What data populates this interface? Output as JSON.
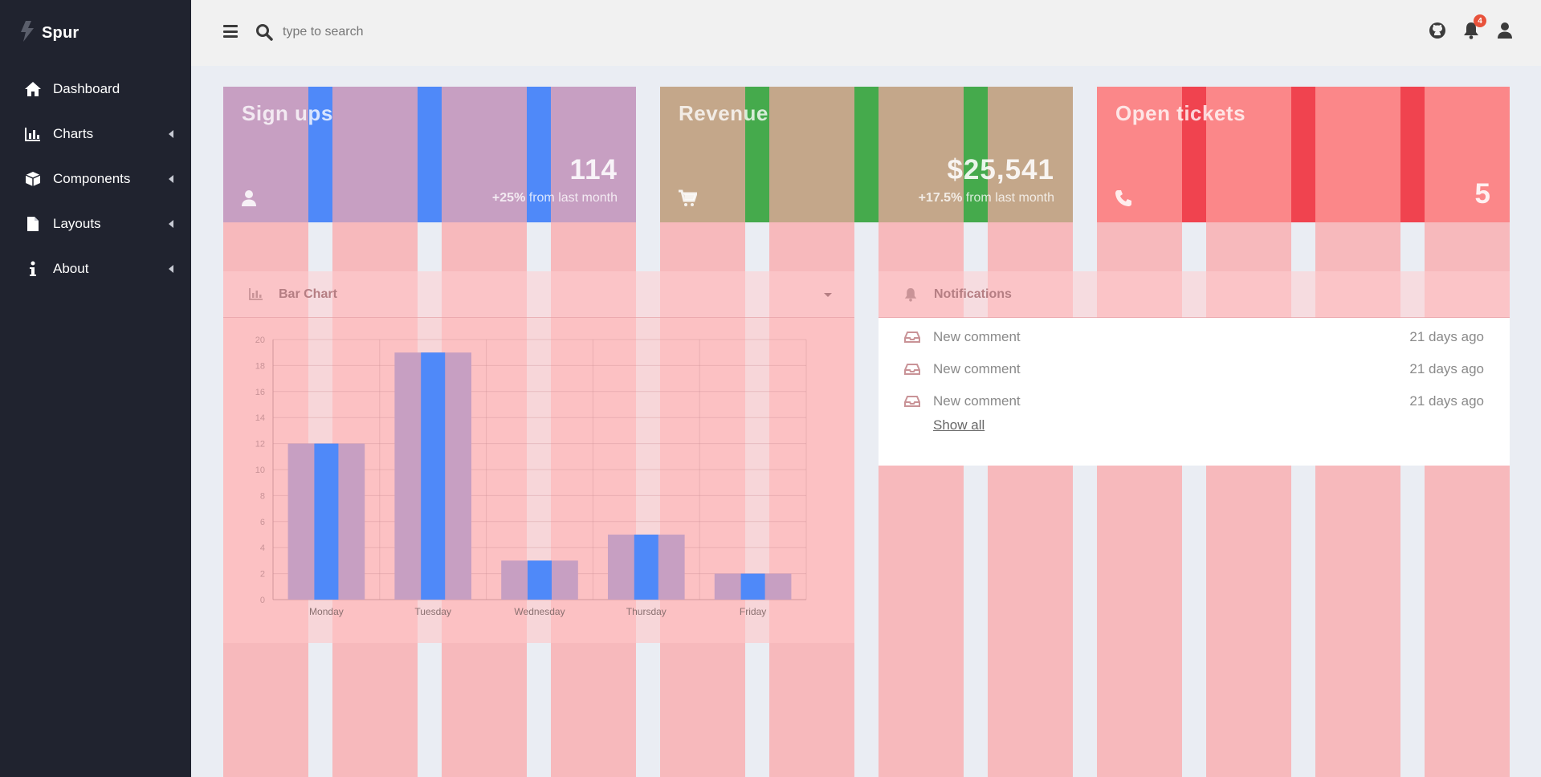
{
  "sidebar": {
    "brand": "Spur",
    "items": [
      {
        "label": "Dashboard",
        "icon": "home-icon",
        "has_caret": false
      },
      {
        "label": "Charts",
        "icon": "bar-chart-icon",
        "has_caret": true
      },
      {
        "label": "Components",
        "icon": "cube-icon",
        "has_caret": true
      },
      {
        "label": "Layouts",
        "icon": "file-icon",
        "has_caret": true
      },
      {
        "label": "About",
        "icon": "info-icon",
        "has_caret": true
      }
    ]
  },
  "topbar": {
    "search_placeholder": "type to search",
    "notification_count": "4"
  },
  "cards": {
    "signups": {
      "title": "Sign ups",
      "value": "114",
      "delta": "+25%",
      "delta_suffix": " from last month",
      "icon": "user-icon"
    },
    "revenue": {
      "title": "Revenue",
      "value": "$25,541",
      "delta": "+17.5%",
      "delta_suffix": " from last month",
      "icon": "cart-icon"
    },
    "tickets": {
      "title": "Open tickets",
      "value": "5",
      "icon": "phone-icon"
    }
  },
  "bar_panel": {
    "title": "Bar Chart"
  },
  "chart_data": {
    "type": "bar",
    "categories": [
      "Monday",
      "Tuesday",
      "Wednesday",
      "Thursday",
      "Friday"
    ],
    "values": [
      12,
      19,
      3,
      5,
      2
    ],
    "ylim": [
      0,
      20
    ],
    "yticks": [
      0,
      2,
      4,
      6,
      8,
      10,
      12,
      14,
      16,
      18,
      20
    ],
    "bar_color": "#c79fc2",
    "grid": true
  },
  "notifications": {
    "title": "Notifications",
    "items": [
      {
        "text": "New comment",
        "time": "21 days ago"
      },
      {
        "text": "New comment",
        "time": "21 days ago"
      },
      {
        "text": "New comment",
        "time": "21 days ago"
      }
    ],
    "show_all": "Show all"
  },
  "colors": {
    "sidebar_bg": "#20232f",
    "topbar_bg": "#f1f1f1",
    "signups_bg": "#c79fc2",
    "signups_stripe": "#4f89f9",
    "revenue_bg": "#c4a78a",
    "revenue_stripe": "#45aa4c",
    "tickets_bg": "#fb8789",
    "tickets_stripe": "#f0434f",
    "badge": "#e8523b"
  }
}
